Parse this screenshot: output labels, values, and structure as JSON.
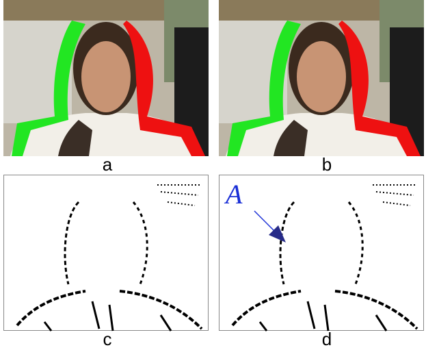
{
  "panels": [
    {
      "label": "a"
    },
    {
      "label": "b"
    },
    {
      "label": "c"
    },
    {
      "label": "d"
    }
  ],
  "annotation": "A"
}
